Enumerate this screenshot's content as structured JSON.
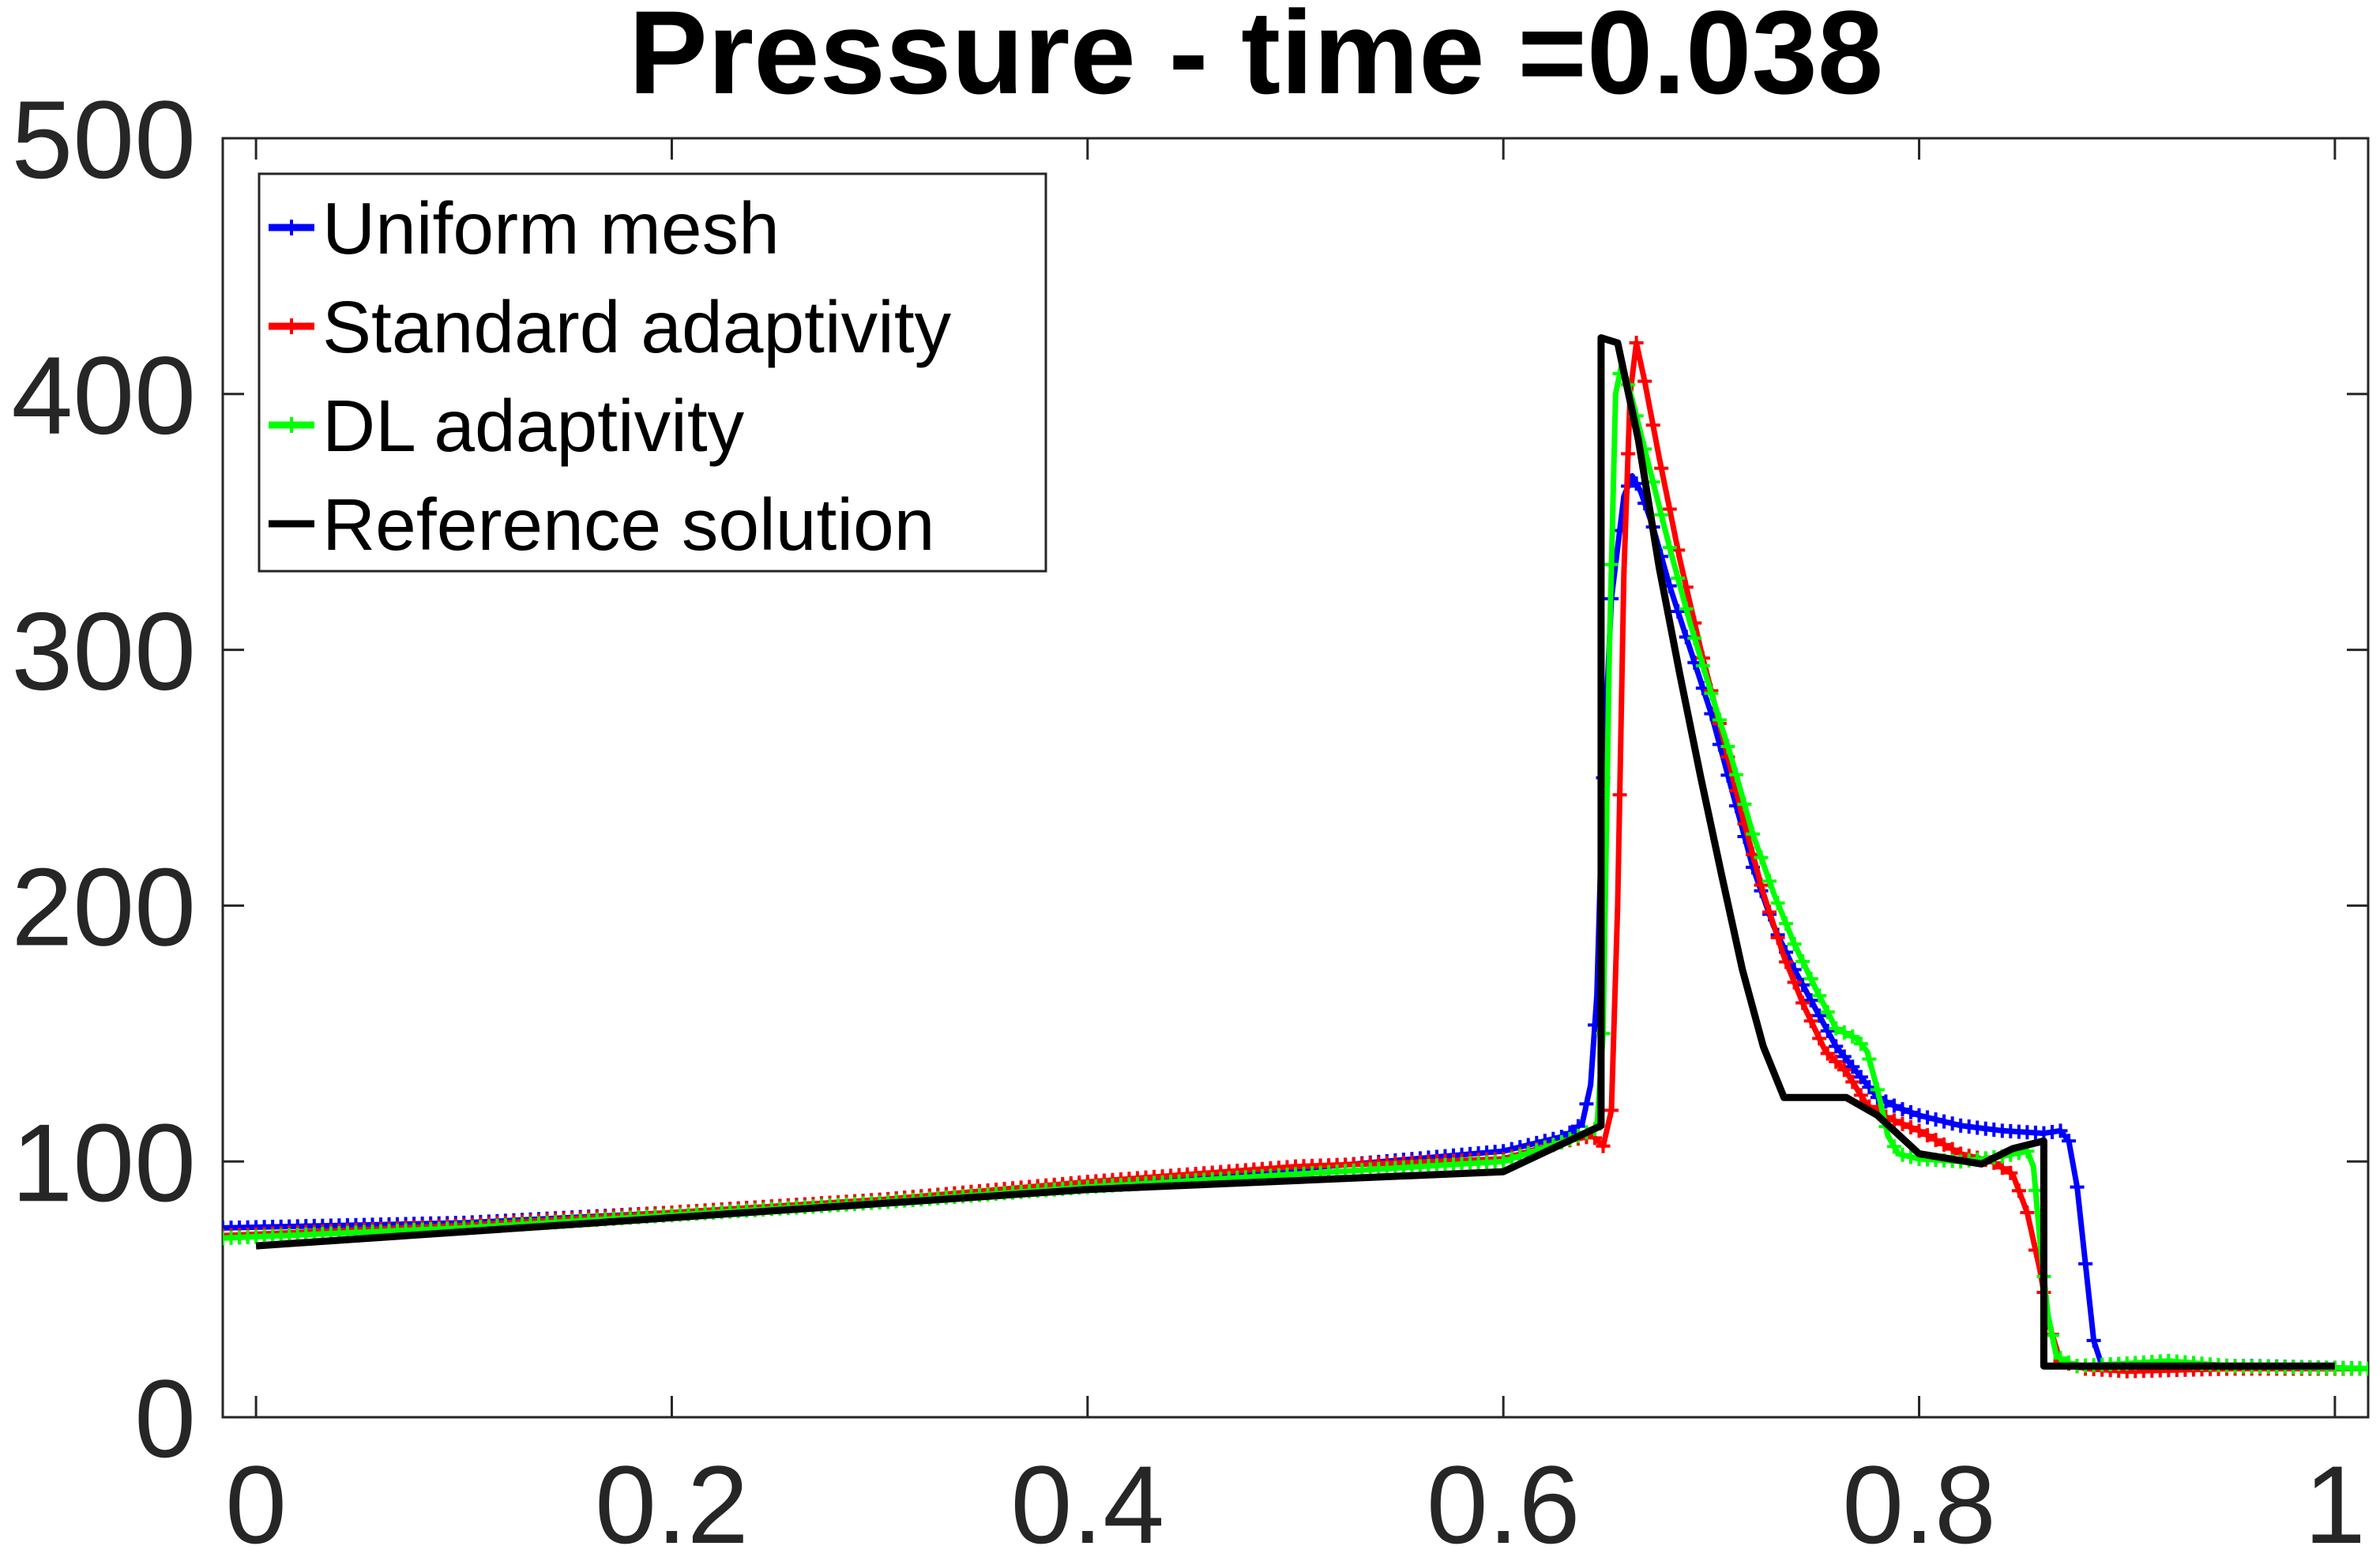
{
  "chart_data": {
    "type": "line",
    "title": "Pressure - time =0.038",
    "xlabel": "",
    "ylabel": "",
    "xlim": [
      -0.016,
      1.016
    ],
    "ylim": [
      0,
      500
    ],
    "x_ticks": [
      0,
      0.2,
      0.4,
      0.6,
      0.8,
      1
    ],
    "x_tick_labels": [
      "0",
      "0.2",
      "0.4",
      "0.6",
      "0.8",
      "1"
    ],
    "y_ticks": [
      0,
      100,
      200,
      300,
      400,
      500
    ],
    "y_tick_labels": [
      "0",
      "100",
      "200",
      "300",
      "400",
      "500"
    ],
    "grid": false,
    "legend_position": "top-left",
    "series": [
      {
        "name": "Uniform mesh",
        "color": "#0000ff",
        "marker": "plus",
        "points": [
          [
            -0.016,
            74
          ],
          [
            0.1,
            76
          ],
          [
            0.2,
            80
          ],
          [
            0.3,
            85
          ],
          [
            0.4,
            91
          ],
          [
            0.5,
            97
          ],
          [
            0.6,
            104
          ],
          [
            0.63,
            110
          ],
          [
            0.638,
            115
          ],
          [
            0.642,
            130
          ],
          [
            0.645,
            165
          ],
          [
            0.648,
            250
          ],
          [
            0.652,
            320
          ],
          [
            0.658,
            360
          ],
          [
            0.662,
            368
          ],
          [
            0.666,
            362
          ],
          [
            0.672,
            348
          ],
          [
            0.68,
            325
          ],
          [
            0.69,
            300
          ],
          [
            0.7,
            275
          ],
          [
            0.71,
            245
          ],
          [
            0.72,
            215
          ],
          [
            0.73,
            192
          ],
          [
            0.74,
            175
          ],
          [
            0.75,
            160
          ],
          [
            0.76,
            145
          ],
          [
            0.77,
            135
          ],
          [
            0.78,
            125
          ],
          [
            0.79,
            121
          ],
          [
            0.8,
            118
          ],
          [
            0.82,
            114
          ],
          [
            0.84,
            112
          ],
          [
            0.86,
            111
          ],
          [
            0.868,
            112
          ],
          [
            0.872,
            108
          ],
          [
            0.876,
            90
          ],
          [
            0.88,
            60
          ],
          [
            0.884,
            30
          ],
          [
            0.888,
            20
          ],
          [
            0.92,
            20
          ],
          [
            0.96,
            20
          ],
          [
            1.016,
            19
          ]
        ]
      },
      {
        "name": "Standard adaptivity",
        "color": "#ff0000",
        "marker": "plus",
        "points": [
          [
            -0.016,
            71
          ],
          [
            0.1,
            75
          ],
          [
            0.2,
            80
          ],
          [
            0.3,
            85
          ],
          [
            0.4,
            92
          ],
          [
            0.5,
            98
          ],
          [
            0.6,
            101
          ],
          [
            0.63,
            108
          ],
          [
            0.643,
            110
          ],
          [
            0.648,
            106
          ],
          [
            0.652,
            120
          ],
          [
            0.655,
            200
          ],
          [
            0.658,
            330
          ],
          [
            0.661,
            400
          ],
          [
            0.664,
            420
          ],
          [
            0.668,
            405
          ],
          [
            0.675,
            375
          ],
          [
            0.685,
            335
          ],
          [
            0.695,
            300
          ],
          [
            0.705,
            268
          ],
          [
            0.715,
            235
          ],
          [
            0.725,
            205
          ],
          [
            0.735,
            180
          ],
          [
            0.745,
            160
          ],
          [
            0.755,
            143
          ],
          [
            0.765,
            135
          ],
          [
            0.775,
            122
          ],
          [
            0.785,
            117
          ],
          [
            0.8,
            112
          ],
          [
            0.82,
            103
          ],
          [
            0.835,
            100
          ],
          [
            0.845,
            95
          ],
          [
            0.852,
            80
          ],
          [
            0.858,
            58
          ],
          [
            0.863,
            35
          ],
          [
            0.868,
            22
          ],
          [
            0.88,
            19
          ],
          [
            0.9,
            18
          ],
          [
            0.95,
            19
          ],
          [
            1.016,
            19
          ]
        ]
      },
      {
        "name": "DL adaptivity",
        "color": "#00ff00",
        "marker": "plus",
        "points": [
          [
            -0.016,
            70
          ],
          [
            0.1,
            74
          ],
          [
            0.2,
            79
          ],
          [
            0.3,
            84
          ],
          [
            0.4,
            90
          ],
          [
            0.5,
            95
          ],
          [
            0.6,
            100
          ],
          [
            0.63,
            108
          ],
          [
            0.645,
            113
          ],
          [
            0.648,
            150
          ],
          [
            0.651,
            300
          ],
          [
            0.654,
            400
          ],
          [
            0.657,
            412
          ],
          [
            0.662,
            398
          ],
          [
            0.67,
            372
          ],
          [
            0.68,
            340
          ],
          [
            0.69,
            310
          ],
          [
            0.7,
            283
          ],
          [
            0.71,
            257
          ],
          [
            0.72,
            228
          ],
          [
            0.73,
            205
          ],
          [
            0.74,
            185
          ],
          [
            0.75,
            168
          ],
          [
            0.76,
            152
          ],
          [
            0.77,
            148
          ],
          [
            0.775,
            143
          ],
          [
            0.78,
            128
          ],
          [
            0.785,
            110
          ],
          [
            0.79,
            103
          ],
          [
            0.8,
            101
          ],
          [
            0.82,
            100
          ],
          [
            0.84,
            102
          ],
          [
            0.852,
            104
          ],
          [
            0.855,
            98
          ],
          [
            0.858,
            70
          ],
          [
            0.862,
            40
          ],
          [
            0.866,
            24
          ],
          [
            0.875,
            20
          ],
          [
            0.9,
            21
          ],
          [
            0.92,
            22
          ],
          [
            0.95,
            20
          ],
          [
            1.016,
            19
          ]
        ]
      },
      {
        "name": "Reference solution",
        "color": "#000000",
        "marker": "none",
        "points": [
          [
            0,
            67
          ],
          [
            0.2,
            78
          ],
          [
            0.4,
            89
          ],
          [
            0.6,
            96
          ],
          [
            0.647,
            114
          ],
          [
            0.647,
            422
          ],
          [
            0.655,
            420
          ],
          [
            0.665,
            382
          ],
          [
            0.675,
            332
          ],
          [
            0.685,
            290
          ],
          [
            0.695,
            250
          ],
          [
            0.705,
            212
          ],
          [
            0.715,
            175
          ],
          [
            0.725,
            145
          ],
          [
            0.735,
            125
          ],
          [
            0.765,
            125
          ],
          [
            0.78,
            118
          ],
          [
            0.8,
            103
          ],
          [
            0.83,
            99
          ],
          [
            0.845,
            105
          ],
          [
            0.86,
            108
          ],
          [
            0.86,
            20
          ],
          [
            0.875,
            20
          ],
          [
            1.0,
            20
          ]
        ]
      }
    ]
  }
}
